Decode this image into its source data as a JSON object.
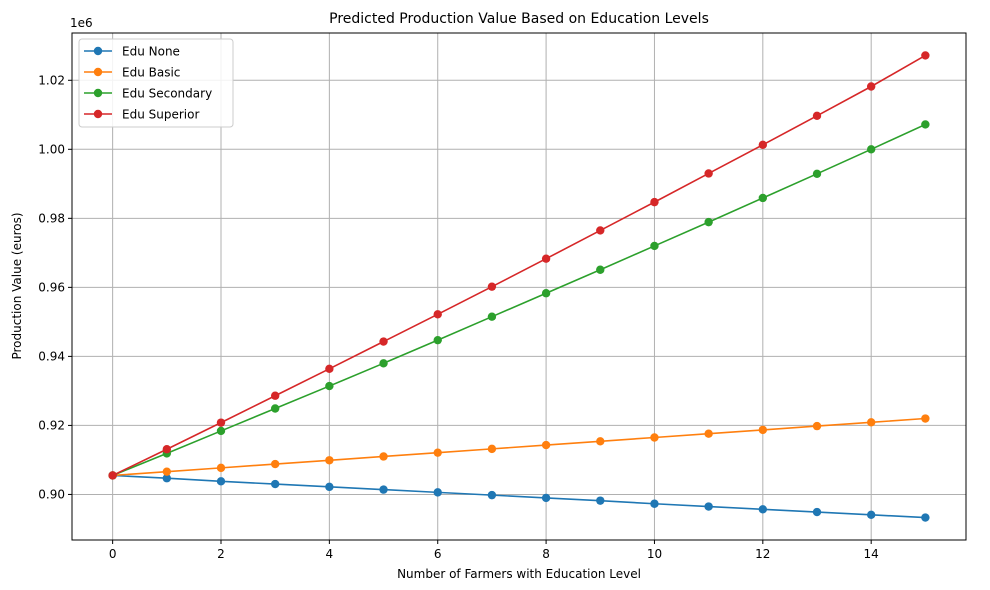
{
  "chart_data": {
    "type": "line",
    "title": "Predicted Production Value Based on Education Levels",
    "xlabel": "Number of Farmers with Education Level",
    "ylabel": "Production Value (euros)",
    "y_offset_label": "1e6",
    "xlim": [
      -0.75,
      15.75
    ],
    "ylim": [
      0.8868,
      1.0337
    ],
    "scale": 1000000,
    "x_ticks": [
      0,
      2,
      4,
      6,
      8,
      10,
      12,
      14
    ],
    "x_tick_labels": [
      "0",
      "2",
      "4",
      "6",
      "8",
      "10",
      "12",
      "14"
    ],
    "y_ticks": [
      0.9,
      0.92,
      0.94,
      0.96,
      0.98,
      1.0,
      1.02
    ],
    "y_tick_labels": [
      "0.90",
      "0.92",
      "0.94",
      "0.96",
      "0.98",
      "1.00",
      "1.02"
    ],
    "grid": true,
    "legend_position": "top-left",
    "x": [
      0,
      1,
      2,
      3,
      4,
      5,
      6,
      7,
      8,
      9,
      10,
      11,
      12,
      13,
      14,
      15
    ],
    "series": [
      {
        "name": "Edu None",
        "color": "#1f77b4",
        "values": [
          0.9055,
          0.9047,
          0.9038,
          0.903,
          0.9022,
          0.9014,
          0.9006,
          0.8998,
          0.899,
          0.8982,
          0.8973,
          0.8965,
          0.8957,
          0.8949,
          0.8941,
          0.8933
        ]
      },
      {
        "name": "Edu Basic",
        "color": "#ff7f0e",
        "values": [
          0.9055,
          0.9066,
          0.9077,
          0.9088,
          0.9099,
          0.911,
          0.9121,
          0.9132,
          0.9143,
          0.9154,
          0.9165,
          0.9176,
          0.9187,
          0.9198,
          0.9209,
          0.922
        ]
      },
      {
        "name": "Edu Secondary",
        "color": "#2ca02c",
        "values": [
          0.9055,
          0.9119,
          0.9184,
          0.9249,
          0.9314,
          0.938,
          0.9447,
          0.9515,
          0.9583,
          0.9651,
          0.972,
          0.9789,
          0.9859,
          0.9929,
          1.0,
          1.0072
        ]
      },
      {
        "name": "Edu Superior",
        "color": "#d62728",
        "values": [
          0.9055,
          0.9131,
          0.9208,
          0.9286,
          0.9364,
          0.9443,
          0.9522,
          0.9602,
          0.9683,
          0.9765,
          0.9847,
          0.993,
          1.0013,
          1.0097,
          1.0182,
          1.0272
        ]
      }
    ]
  }
}
